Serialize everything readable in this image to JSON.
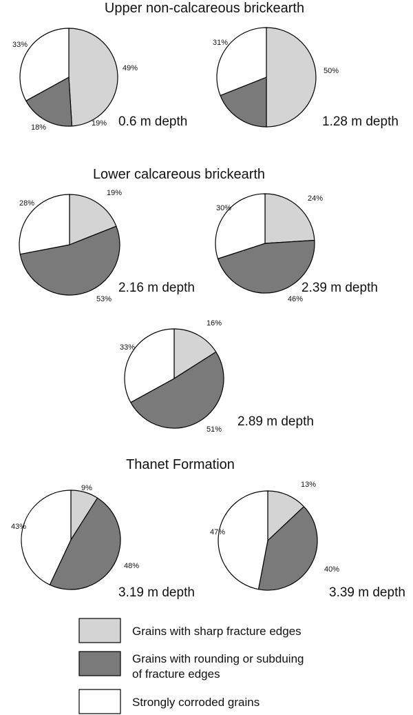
{
  "colors": {
    "sharp": "#d4d4d4",
    "rounded": "#7a7a7a",
    "corroded": "#ffffff"
  },
  "legend": [
    {
      "key": "sharp",
      "label": "Grains with sharp fracture edges"
    },
    {
      "key": "rounded",
      "label_line1": "Grains with rounding or subduing",
      "label_line2": "of  fracture edges"
    },
    {
      "key": "corroded",
      "label": "Strongly corroded grains"
    }
  ],
  "chart_data": [
    {
      "type": "pie",
      "section": "Upper non-calcareous brickearth",
      "depth_label": "0.6 m depth",
      "categories": [
        "Grains with sharp fracture edges",
        "Grains with rounding or subduing of fracture edges",
        "Strongly corroded grains"
      ],
      "values": [
        49,
        18,
        33
      ],
      "labels": [
        "49%",
        "18%",
        "33%"
      ]
    },
    {
      "type": "pie",
      "section": "Upper non-calcareous brickearth",
      "depth_label": "1.28 m depth",
      "categories": [
        "Grains with sharp fracture edges",
        "Grains with rounding or subduing of fracture edges",
        "Strongly corroded grains"
      ],
      "values": [
        50,
        19,
        31
      ],
      "labels": [
        "50%",
        "19%",
        "31%"
      ]
    },
    {
      "type": "pie",
      "section": "Lower calcareous brickearth",
      "depth_label": "2.16 m depth",
      "categories": [
        "Grains with sharp fracture edges",
        "Grains with rounding or subduing of fracture edges",
        "Strongly corroded grains"
      ],
      "values": [
        19,
        53,
        28
      ],
      "labels": [
        "19%",
        "53%",
        "28%"
      ]
    },
    {
      "type": "pie",
      "section": "Lower calcareous brickearth",
      "depth_label": "2.39 m depth",
      "categories": [
        "Grains with sharp fracture edges",
        "Grains with rounding or subduing of fracture edges",
        "Strongly corroded grains"
      ],
      "values": [
        24,
        46,
        30
      ],
      "labels": [
        "24%",
        "46%",
        "30%"
      ]
    },
    {
      "type": "pie",
      "section": "Lower calcareous brickearth",
      "depth_label": "2.89 m depth",
      "categories": [
        "Grains with sharp fracture edges",
        "Grains with rounding or subduing of fracture edges",
        "Strongly corroded grains"
      ],
      "values": [
        16,
        51,
        33
      ],
      "labels": [
        "16%",
        "51%",
        "33%"
      ]
    },
    {
      "type": "pie",
      "section": "Thanet Formation",
      "depth_label": "3.19 m depth",
      "categories": [
        "Grains with sharp fracture edges",
        "Grains with rounding or subduing of fracture edges",
        "Strongly corroded grains"
      ],
      "values": [
        9,
        48,
        43
      ],
      "labels": [
        "9%",
        "48%",
        "43%"
      ]
    },
    {
      "type": "pie",
      "section": "Thanet Formation",
      "depth_label": "3.39 m depth",
      "categories": [
        "Grains with sharp fracture edges",
        "Grains with rounding or subduing of fracture edges",
        "Strongly corroded grains"
      ],
      "values": [
        13,
        40,
        47
      ],
      "labels": [
        "13%",
        "40%",
        "47%"
      ]
    }
  ]
}
